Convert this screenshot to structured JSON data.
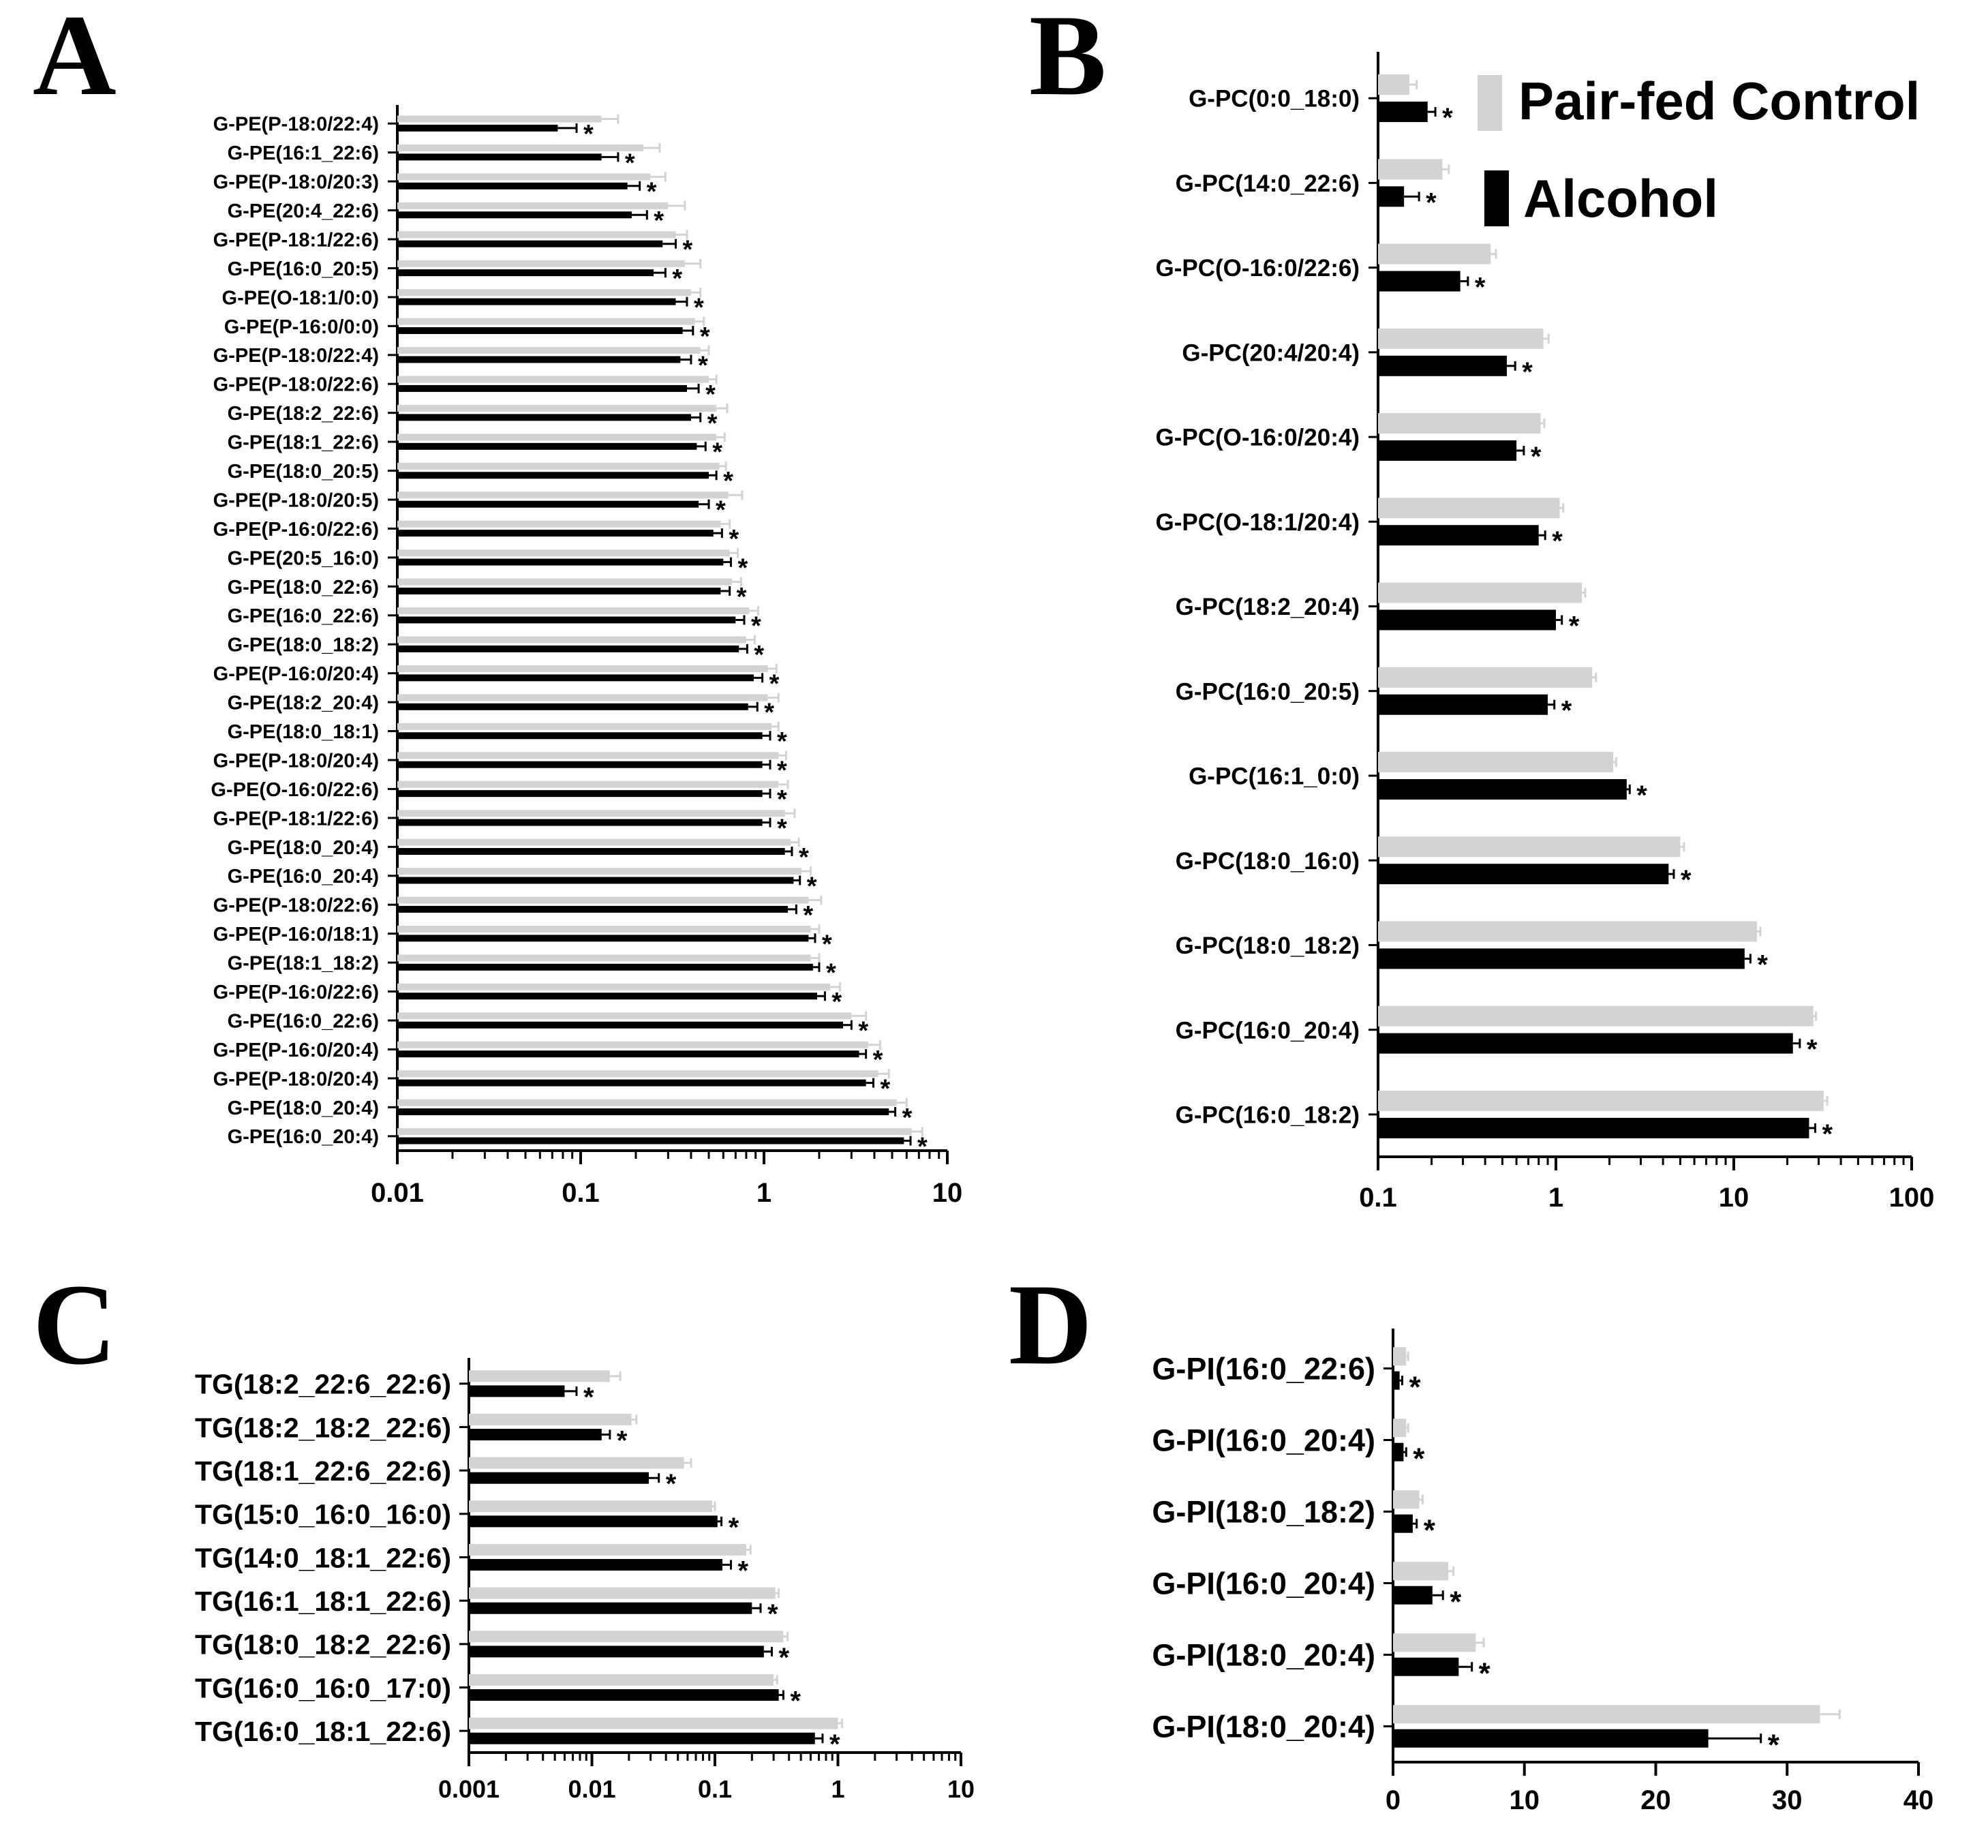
{
  "colors": {
    "control": "#d3d3d3",
    "alcohol": "#000000"
  },
  "legend": {
    "control": "Pair-fed Control",
    "alcohol": "Alcohol"
  },
  "chart_data": [
    {
      "panel": "A",
      "type": "bar",
      "orientation": "horizontal",
      "scale": "log",
      "xlim": [
        0.01,
        10
      ],
      "ticks": [
        0.01,
        0.1,
        1,
        10
      ],
      "tick_labels": [
        "0.01",
        "0.1",
        "1",
        "10"
      ],
      "categories": [
        "G-PE(P-18:0/22:4)",
        "G-PE(16:1_22:6)",
        "G-PE(P-18:0/20:3)",
        "G-PE(20:4_22:6)",
        "G-PE(P-18:1/22:6)",
        "G-PE(16:0_20:5)",
        "G-PE(O-18:1/0:0)",
        "G-PE(P-16:0/0:0)",
        "G-PE(P-18:0/22:4)",
        "G-PE(P-18:0/22:6)",
        "G-PE(18:2_22:6)",
        "G-PE(18:1_22:6)",
        "G-PE(18:0_20:5)",
        "G-PE(P-18:0/20:5)",
        "G-PE(P-16:0/22:6)",
        "G-PE(20:5_16:0)",
        "G-PE(18:0_22:6)",
        "G-PE(16:0_22:6)",
        "G-PE(18:0_18:2)",
        "G-PE(P-16:0/20:4)",
        "G-PE(18:2_20:4)",
        "G-PE(18:0_18:1)",
        "G-PE(P-18:0/20:4)",
        "G-PE(O-16:0/22:6)",
        "G-PE(P-18:1/22:6)",
        "G-PE(18:0_20:4)",
        "G-PE(16:0_20:4)",
        "G-PE(P-18:0/22:6)",
        "G-PE(P-16:0/18:1)",
        "G-PE(18:1_18:2)",
        "G-PE(P-16:0/22:6)",
        "G-PE(16:0_22:6)",
        "G-PE(P-16:0/20:4)",
        "G-PE(P-18:0/20:4)",
        "G-PE(18:0_20:4)",
        "G-PE(16:0_20:4)"
      ],
      "series": [
        {
          "name": "Pair-fed Control",
          "values": [
            0.13,
            0.22,
            0.24,
            0.3,
            0.33,
            0.37,
            0.4,
            0.42,
            0.45,
            0.5,
            0.55,
            0.55,
            0.57,
            0.64,
            0.58,
            0.65,
            0.67,
            0.83,
            0.8,
            1.05,
            1.05,
            1.1,
            1.2,
            1.2,
            1.3,
            1.4,
            1.6,
            1.75,
            1.8,
            1.8,
            2.3,
            3.0,
            3.7,
            4.2,
            5.3,
            6.4
          ],
          "errors": [
            0.03,
            0.05,
            0.05,
            0.07,
            0.05,
            0.08,
            0.05,
            0.05,
            0.05,
            0.05,
            0.08,
            0.06,
            0.05,
            0.12,
            0.07,
            0.07,
            0.08,
            0.1,
            0.09,
            0.12,
            0.15,
            0.1,
            0.12,
            0.15,
            0.17,
            0.15,
            0.2,
            0.3,
            0.2,
            0.2,
            0.3,
            0.6,
            0.6,
            0.6,
            0.7,
            0.9
          ]
        },
        {
          "name": "Alcohol",
          "values": [
            0.075,
            0.13,
            0.18,
            0.19,
            0.28,
            0.25,
            0.33,
            0.36,
            0.35,
            0.38,
            0.4,
            0.43,
            0.5,
            0.44,
            0.53,
            0.6,
            0.58,
            0.7,
            0.73,
            0.88,
            0.82,
            0.98,
            0.98,
            0.98,
            0.98,
            1.3,
            1.45,
            1.35,
            1.75,
            1.85,
            1.95,
            2.7,
            3.3,
            3.6,
            4.8,
            5.8
          ],
          "errors": [
            0.02,
            0.03,
            0.03,
            0.04,
            0.05,
            0.04,
            0.05,
            0.05,
            0.05,
            0.06,
            0.05,
            0.05,
            0.05,
            0.06,
            0.06,
            0.06,
            0.07,
            0.08,
            0.08,
            0.1,
            0.1,
            0.1,
            0.1,
            0.1,
            0.1,
            0.12,
            0.12,
            0.15,
            0.15,
            0.15,
            0.2,
            0.3,
            0.3,
            0.35,
            0.4,
            0.5
          ]
        }
      ],
      "significance": "*"
    },
    {
      "panel": "B",
      "type": "bar",
      "orientation": "horizontal",
      "scale": "log",
      "xlim": [
        0.1,
        100
      ],
      "ticks": [
        0.1,
        1,
        10,
        100
      ],
      "tick_labels": [
        "0.1",
        "1",
        "10",
        "100"
      ],
      "categories": [
        "G-PC(0:0_18:0)",
        "G-PC(14:0_22:6)",
        "G-PC(O-16:0/22:6)",
        "G-PC(20:4/20:4)",
        "G-PC(O-16:0/20:4)",
        "G-PC(O-18:1/20:4)",
        "G-PC(18:2_20:4)",
        "G-PC(16:0_20:5)",
        "G-PC(16:1_0:0)",
        "G-PC(18:0_16:0)",
        "G-PC(18:0_18:2)",
        "G-PC(16:0_20:4)",
        "G-PC(16:0_18:2)"
      ],
      "series": [
        {
          "name": "Pair-fed Control",
          "values": [
            0.15,
            0.23,
            0.43,
            0.85,
            0.82,
            1.05,
            1.4,
            1.6,
            2.1,
            5.0,
            13.5,
            28,
            32
          ],
          "errors": [
            0.015,
            0.02,
            0.03,
            0.06,
            0.04,
            0.05,
            0.06,
            0.08,
            0.08,
            0.25,
            0.6,
            1.0,
            1.5
          ]
        },
        {
          "name": "Alcohol",
          "values": [
            0.19,
            0.14,
            0.29,
            0.53,
            0.6,
            0.8,
            1.0,
            0.9,
            2.5,
            4.3,
            11.5,
            21.5,
            26.5
          ],
          "errors": [
            0.02,
            0.03,
            0.03,
            0.06,
            0.06,
            0.07,
            0.08,
            0.08,
            0.1,
            0.3,
            0.9,
            2.0,
            2.2
          ]
        }
      ],
      "significance": "*"
    },
    {
      "panel": "C",
      "type": "bar",
      "orientation": "horizontal",
      "scale": "log",
      "xlim": [
        0.001,
        10
      ],
      "ticks": [
        0.001,
        0.01,
        0.1,
        1,
        10
      ],
      "tick_labels": [
        "0.001",
        "0.01",
        "0.1",
        "1",
        "10"
      ],
      "categories": [
        "TG(18:2_22:6_22:6)",
        "TG(18:2_18:2_22:6)",
        "TG(18:1_22:6_22:6)",
        "TG(15:0_16:0_16:0)",
        "TG(14:0_18:1_22:6)",
        "TG(16:1_18:1_22:6)",
        "TG(18:0_18:2_22:6)",
        "TG(16:0_16:0_17:0)",
        "TG(16:0_18:1_22:6)"
      ],
      "series": [
        {
          "name": "Pair-fed Control",
          "values": [
            0.014,
            0.021,
            0.056,
            0.095,
            0.18,
            0.31,
            0.36,
            0.3,
            1.0
          ],
          "errors": [
            0.003,
            0.002,
            0.008,
            0.005,
            0.015,
            0.02,
            0.03,
            0.02,
            0.08
          ]
        },
        {
          "name": "Alcohol",
          "values": [
            0.006,
            0.012,
            0.029,
            0.105,
            0.115,
            0.2,
            0.25,
            0.33,
            0.65
          ],
          "errors": [
            0.0015,
            0.002,
            0.006,
            0.008,
            0.02,
            0.035,
            0.04,
            0.03,
            0.1
          ]
        }
      ],
      "significance": "*"
    },
    {
      "panel": "D",
      "type": "bar",
      "orientation": "horizontal",
      "scale": "linear",
      "xlim": [
        0,
        40
      ],
      "ticks": [
        0,
        10,
        20,
        30,
        40
      ],
      "tick_labels": [
        "0",
        "10",
        "20",
        "30",
        "40"
      ],
      "categories": [
        "G-PI(16:0_22:6)",
        "G-PI(16:0_20:4)",
        "G-PI(18:0_18:2)",
        "G-PI(16:0_20:4)",
        "G-PI(18:0_20:4)",
        "G-PI(18:0_20:4)"
      ],
      "series": [
        {
          "name": "Pair-fed Control",
          "values": [
            1.0,
            1.0,
            2.0,
            4.2,
            6.3,
            32.5
          ],
          "errors": [
            0.15,
            0.15,
            0.25,
            0.4,
            0.6,
            1.5
          ]
        },
        {
          "name": "Alcohol",
          "values": [
            0.5,
            0.8,
            1.5,
            3.0,
            5.0,
            24.0
          ],
          "errors": [
            0.2,
            0.2,
            0.3,
            0.8,
            1.0,
            4.0
          ]
        }
      ],
      "significance": "*"
    }
  ]
}
